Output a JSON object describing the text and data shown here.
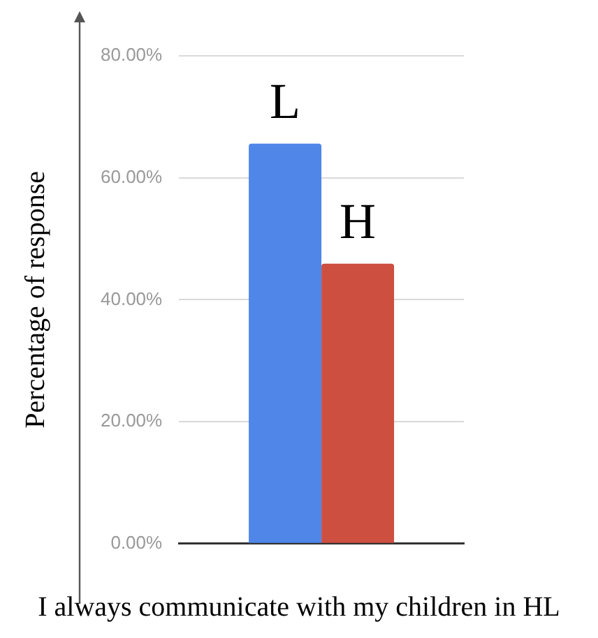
{
  "chart_data": {
    "type": "bar",
    "xlabel": "I always communicate with my children in HL",
    "ylabel": "Percentage of response",
    "categories": [
      null
    ],
    "series": [
      {
        "name": "L",
        "color": "#4f86e8",
        "values": [
          65.6
        ]
      },
      {
        "name": "H",
        "color": "#cd4f40",
        "values": [
          45.9
        ]
      }
    ],
    "ylim": [
      0,
      80
    ],
    "yticks": [
      {
        "value": 0,
        "label": "0.00%"
      },
      {
        "value": 20,
        "label": "20.00%"
      },
      {
        "value": 40,
        "label": "40.00%"
      },
      {
        "value": 60,
        "label": "60.00%"
      },
      {
        "value": 80,
        "label": "80.00%"
      }
    ],
    "grid": "y",
    "legend": false
  }
}
